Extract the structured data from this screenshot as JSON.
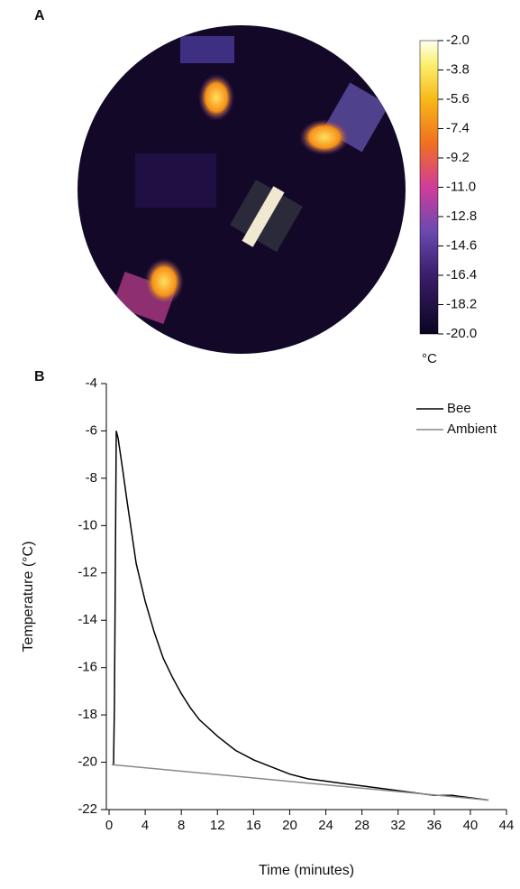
{
  "chart_data": [
    {
      "type": "thermal-image",
      "panel_label": "A",
      "colorbar_lim": [
        -20,
        -2
      ],
      "colorbar_ticks": [
        {
          "value": -2,
          "label": "-2.0"
        },
        -3.8,
        -5.6,
        -7.4,
        -9.2,
        {
          "value": -11,
          "label": "-11.0"
        },
        -12.8,
        -14.6,
        -16.4,
        -18.2,
        {
          "value": -20,
          "label": "-20.0"
        }
      ],
      "colorbar_unit": "°C"
    },
    {
      "type": "line",
      "panel_label": "B",
      "xlabel": "Time (minutes)",
      "ylabel": "Temperature (°C)",
      "xlim": [
        -0.3,
        44
      ],
      "ylim": [
        -22,
        -4
      ],
      "xticks": [
        0,
        4,
        8,
        12,
        16,
        20,
        24,
        28,
        32,
        36,
        40,
        44
      ],
      "yticks": [
        -4,
        -6,
        -8,
        -10,
        -12,
        -14,
        -16,
        -18,
        -20,
        -22
      ],
      "legend": "top-right",
      "series": [
        {
          "name": "Bee",
          "color": "#000000",
          "x": [
            0.5,
            0.6,
            0.8,
            1,
            1.5,
            2,
            2.5,
            3,
            4,
            5,
            6,
            7,
            8,
            9,
            10,
            12,
            14,
            16,
            18,
            20,
            22,
            24,
            26,
            28,
            30,
            32,
            34,
            36,
            38,
            40,
            42
          ],
          "values": [
            -20.1,
            -17.5,
            -6.0,
            -6.3,
            -7.6,
            -9.0,
            -10.3,
            -11.6,
            -13.2,
            -14.5,
            -15.6,
            -16.4,
            -17.1,
            -17.7,
            -18.2,
            -18.9,
            -19.5,
            -19.9,
            -20.2,
            -20.5,
            -20.7,
            -20.8,
            -20.9,
            -21.0,
            -21.1,
            -21.2,
            -21.3,
            -21.4,
            -21.4,
            -21.5,
            -21.6
          ]
        },
        {
          "name": "Ambient",
          "color": "#888888",
          "x": [
            0.3,
            42
          ],
          "values": [
            -20.1,
            -21.6
          ]
        }
      ]
    }
  ]
}
